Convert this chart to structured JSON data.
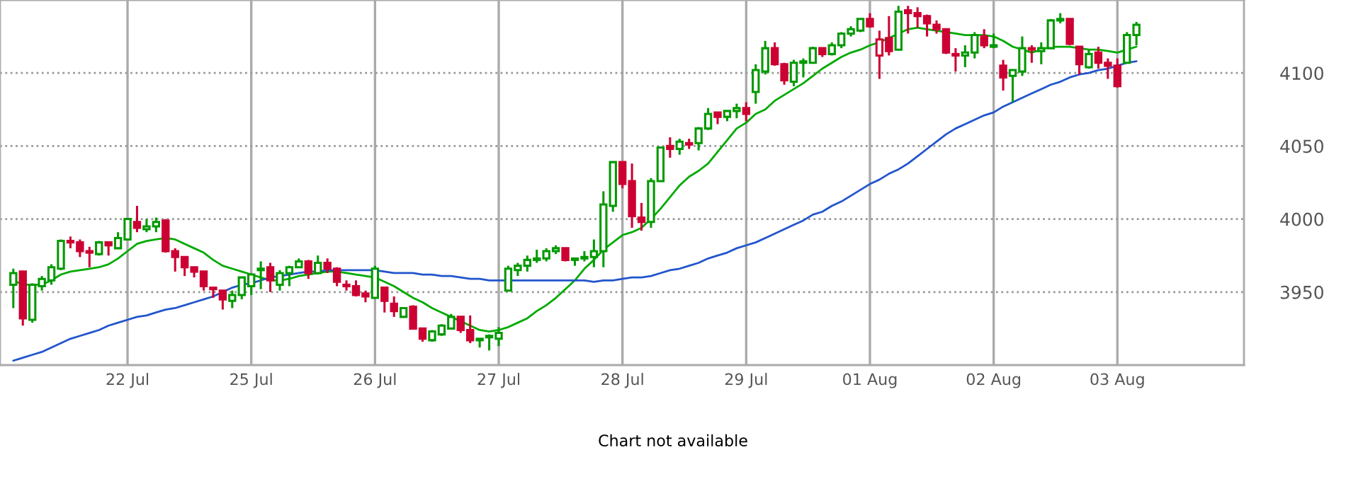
{
  "chart_data": {
    "type": "candlestick",
    "categories": [
      null,
      null,
      null,
      null,
      null,
      null,
      null,
      null,
      null,
      null,
      null,
      null,
      "22 Jul",
      null,
      null,
      null,
      null,
      null,
      null,
      null,
      null,
      null,
      null,
      null,
      null,
      "25 Jul",
      null,
      null,
      null,
      null,
      null,
      null,
      null,
      null,
      null,
      null,
      null,
      null,
      "26 Jul",
      null,
      null,
      null,
      null,
      null,
      null,
      null,
      null,
      null,
      null,
      null,
      null,
      "27 Jul",
      null,
      null,
      null,
      null,
      null,
      null,
      null,
      null,
      null,
      null,
      null,
      null,
      "28 Jul",
      null,
      null,
      null,
      null,
      null,
      null,
      null,
      null,
      null,
      null,
      null,
      null,
      "29 Jul",
      null,
      null,
      null,
      null,
      null,
      null,
      null,
      null,
      null,
      null,
      null,
      null,
      "01 Aug",
      null,
      null,
      null,
      null,
      null,
      null,
      null,
      null,
      null,
      null,
      null,
      null,
      "02 Aug",
      null,
      null,
      null,
      null,
      null,
      null,
      null,
      null,
      null,
      null,
      null,
      null,
      "03 Aug",
      null,
      null
    ],
    "ohlc": [
      [
        3955,
        3966,
        3939,
        3963
      ],
      [
        3964,
        3964,
        3927,
        3932
      ],
      [
        3931,
        3956,
        3929,
        3955
      ],
      [
        3954,
        3961,
        3951,
        3959
      ],
      [
        3958,
        3969,
        3955,
        3967
      ],
      [
        3966,
        3986,
        3965,
        3985
      ],
      [
        3985,
        3988,
        3980,
        3984
      ],
      [
        3984,
        3986,
        3974,
        3978
      ],
      [
        3978,
        3981,
        3967,
        3977
      ],
      [
        3976,
        3985,
        3975,
        3984
      ],
      [
        3984,
        3984,
        3975,
        3982
      ],
      [
        3980,
        3991,
        3980,
        3987
      ],
      [
        3986,
        4000,
        3986,
        4000
      ],
      [
        3998,
        4009,
        3991,
        3994
      ],
      [
        3993,
        4000,
        3991,
        3995
      ],
      [
        3995,
        4001,
        3991,
        3998
      ],
      [
        3999,
        4000,
        3977,
        3978
      ],
      [
        3978,
        3980,
        3964,
        3974
      ],
      [
        3974,
        3974,
        3961,
        3967
      ],
      [
        3967,
        3967,
        3960,
        3964
      ],
      [
        3964,
        3964,
        3951,
        3954
      ],
      [
        3953,
        3953,
        3946,
        3952
      ],
      [
        3951,
        3951,
        3938,
        3945
      ],
      [
        3944,
        3951,
        3939,
        3948
      ],
      [
        3948,
        3960,
        3945,
        3960
      ],
      [
        3954,
        3963,
        3948,
        3962
      ],
      [
        3965,
        3971,
        3952,
        3966
      ],
      [
        3967,
        3970,
        3950,
        3958
      ],
      [
        3955,
        3965,
        3951,
        3963
      ],
      [
        3963,
        3968,
        3954,
        3967
      ],
      [
        3967,
        3973,
        3967,
        3971
      ],
      [
        3971,
        3972,
        3959,
        3963
      ],
      [
        3963,
        3975,
        3962,
        3970
      ],
      [
        3970,
        3973,
        3963,
        3966
      ],
      [
        3966,
        3967,
        3954,
        3957
      ],
      [
        3955,
        3958,
        3951,
        3954
      ],
      [
        3954,
        3958,
        3947,
        3948
      ],
      [
        3949,
        3951,
        3943,
        3947
      ],
      [
        3946,
        3968,
        3946,
        3966
      ],
      [
        3953,
        3953,
        3936,
        3944
      ],
      [
        3942,
        3947,
        3933,
        3937
      ],
      [
        3933,
        3939,
        3933,
        3939
      ],
      [
        3940,
        3941,
        3925,
        3925
      ],
      [
        3925,
        3925,
        3916,
        3918
      ],
      [
        3917,
        3924,
        3916,
        3923
      ],
      [
        3921,
        3928,
        3920,
        3927
      ],
      [
        3925,
        3935,
        3925,
        3933
      ],
      [
        3933,
        3933,
        3922,
        3924
      ],
      [
        3924,
        3934,
        3915,
        3917
      ],
      [
        3917,
        3918,
        3912,
        3918
      ],
      [
        3919,
        3921,
        3910,
        3920
      ],
      [
        3918,
        3926,
        3913,
        3922
      ],
      [
        3951,
        3968,
        3951,
        3966
      ],
      [
        3965,
        3970,
        3961,
        3968
      ],
      [
        3968,
        3975,
        3964,
        3972
      ],
      [
        3972,
        3979,
        3970,
        3973
      ],
      [
        3973,
        3980,
        3971,
        3978
      ],
      [
        3978,
        3982,
        3976,
        3980
      ],
      [
        3980,
        3980,
        3971,
        3972
      ],
      [
        3972,
        3973,
        3968,
        3973
      ],
      [
        3973,
        3978,
        3971,
        3974
      ],
      [
        3974,
        3986,
        3967,
        3978
      ],
      [
        3978,
        4019,
        3967,
        4010
      ],
      [
        4009,
        4039,
        4005,
        4039
      ],
      [
        4039,
        4039,
        4021,
        4024
      ],
      [
        4026,
        4038,
        3994,
        4002
      ],
      [
        4001,
        4011,
        3992,
        3998
      ],
      [
        3998,
        4028,
        3994,
        4026
      ],
      [
        4026,
        4049,
        4026,
        4049
      ],
      [
        4050,
        4056,
        4042,
        4048
      ],
      [
        4048,
        4055,
        4044,
        4053
      ],
      [
        4052,
        4055,
        4048,
        4051
      ],
      [
        4052,
        4063,
        4047,
        4062
      ],
      [
        4062,
        4076,
        4061,
        4072
      ],
      [
        4073,
        4073,
        4065,
        4070
      ],
      [
        4070,
        4074,
        4067,
        4074
      ],
      [
        4074,
        4079,
        4069,
        4076
      ],
      [
        4076,
        4080,
        4067,
        4072
      ],
      [
        4087,
        4106,
        4079,
        4102
      ],
      [
        4101,
        4122,
        4099,
        4117
      ],
      [
        4117,
        4121,
        4105,
        4106
      ],
      [
        4106,
        4107,
        4092,
        4095
      ],
      [
        4094,
        4109,
        4091,
        4107
      ],
      [
        4107,
        4110,
        4097,
        4108
      ],
      [
        4107,
        4118,
        4107,
        4117
      ],
      [
        4117,
        4117,
        4111,
        4113
      ],
      [
        4113,
        4121,
        4112,
        4119
      ],
      [
        4119,
        4128,
        4117,
        4127
      ],
      [
        4127,
        4132,
        4125,
        4130
      ],
      [
        4129,
        4137,
        4128,
        4137
      ],
      [
        4137,
        4141,
        4131,
        4132
      ],
      [
        4112,
        4129,
        4096,
        4123
      ],
      [
        4124,
        4139,
        4112,
        4115
      ],
      [
        4116,
        4146,
        4116,
        4142
      ],
      [
        4143,
        4146,
        4127,
        4141
      ],
      [
        4141,
        4145,
        4131,
        4139
      ],
      [
        4139,
        4140,
        4125,
        4134
      ],
      [
        4133,
        4136,
        4127,
        4130
      ],
      [
        4130,
        4130,
        4113,
        4114
      ],
      [
        4113,
        4117,
        4101,
        4112
      ],
      [
        4112,
        4119,
        4104,
        4114
      ],
      [
        4114,
        4128,
        4110,
        4126
      ],
      [
        4125,
        4130,
        4117,
        4119
      ],
      [
        4118,
        4127,
        4117,
        4119
      ],
      [
        4105,
        4109,
        4088,
        4097
      ],
      [
        4098,
        4102,
        4080,
        4102
      ],
      [
        4101,
        4125,
        4098,
        4117
      ],
      [
        4117,
        4119,
        4107,
        4116
      ],
      [
        4115,
        4121,
        4106,
        4117
      ],
      [
        4117,
        4137,
        4117,
        4136
      ],
      [
        4136,
        4141,
        4134,
        4137
      ],
      [
        4137,
        4137,
        4119,
        4120
      ],
      [
        4118,
        4118,
        4099,
        4106
      ],
      [
        4104,
        4116,
        4103,
        4113
      ],
      [
        4114,
        4118,
        4103,
        4107
      ],
      [
        4107,
        4110,
        4096,
        4105
      ],
      [
        4105,
        4110,
        4090,
        4091
      ],
      [
        4107,
        4128,
        4107,
        4126
      ],
      [
        4126,
        4135,
        4119,
        4133
      ]
    ],
    "colors": [
      "#009900",
      "#cc0033",
      "#009900",
      "#009900",
      "#009900",
      "#009900",
      "#cc0033",
      "#cc0033",
      "#cc0033",
      "#009900",
      "#cc0033",
      "#009900",
      "#009900",
      "#cc0033",
      "#009900",
      "#009900",
      "#cc0033",
      "#cc0033",
      "#cc0033",
      "#cc0033",
      "#cc0033",
      "#cc0033",
      "#cc0033",
      "#009900",
      "#009900",
      "#009900",
      "#009900",
      "#cc0033",
      "#009900",
      "#009900",
      "#009900",
      "#cc0033",
      "#009900",
      "#cc0033",
      "#cc0033",
      "#cc0033",
      "#cc0033",
      "#cc0033",
      "#009900",
      "#cc0033",
      "#cc0033",
      "#009900",
      "#cc0033",
      "#cc0033",
      "#009900",
      "#009900",
      "#009900",
      "#cc0033",
      "#cc0033",
      "#009900",
      "#009900",
      "#009900",
      "#009900",
      "#009900",
      "#009900",
      "#009900",
      "#009900",
      "#009900",
      "#cc0033",
      "#009900",
      "#009900",
      "#009900",
      "#009900",
      "#009900",
      "#cc0033",
      "#cc0033",
      "#cc0033",
      "#009900",
      "#009900",
      "#cc0033",
      "#009900",
      "#cc0033",
      "#009900",
      "#009900",
      "#cc0033",
      "#009900",
      "#009900",
      "#cc0033",
      "#009900",
      "#009900",
      "#cc0033",
      "#cc0033",
      "#009900",
      "#009900",
      "#009900",
      "#cc0033",
      "#009900",
      "#009900",
      "#009900",
      "#009900",
      "#cc0033",
      "#cc0033",
      "#cc0033",
      "#009900",
      "#cc0033",
      "#cc0033",
      "#cc0033",
      "#cc0033",
      "#cc0033",
      "#cc0033",
      "#009900",
      "#009900",
      "#cc0033",
      "#009900",
      "#cc0033",
      "#009900",
      "#009900",
      "#cc0033",
      "#009900",
      "#009900",
      "#009900",
      "#cc0033",
      "#cc0033",
      "#009900",
      "#cc0033",
      "#cc0033",
      "#cc0033",
      "#009900",
      "#009900"
    ],
    "series": [
      {
        "type": "line",
        "color": "#00aa00",
        "values": [
          3958,
          3955,
          3955,
          3955,
          3958,
          3962,
          3964,
          3965,
          3966,
          3967,
          3969,
          3973,
          3978,
          3983,
          3985,
          3986,
          3987,
          3986,
          3983,
          3980,
          3977,
          3972,
          3968,
          3966,
          3964,
          3962,
          3960,
          3958,
          3958,
          3959,
          3961,
          3962,
          3963,
          3964,
          3964,
          3963,
          3962,
          3961,
          3960,
          3957,
          3954,
          3950,
          3946,
          3943,
          3939,
          3936,
          3933,
          3930,
          3927,
          3924,
          3923,
          3924,
          3926,
          3929,
          3932,
          3937,
          3941,
          3946,
          3952,
          3958,
          3966,
          3972,
          3979,
          3984,
          3989,
          3991,
          3994,
          4000,
          4007,
          4015,
          4023,
          4029,
          4033,
          4038,
          4046,
          4054,
          4062,
          4066,
          4072,
          4075,
          4081,
          4085,
          4089,
          4093,
          4098,
          4103,
          4107,
          4111,
          4114,
          4116,
          4119,
          4121,
          4124,
          4127,
          4130,
          4131,
          4130,
          4129,
          4128,
          4127,
          4126,
          4126,
          4126,
          4125,
          4122,
          4118,
          4116,
          4114,
          4116,
          4118,
          4118,
          4118,
          4117,
          4116,
          4116,
          4115,
          4114,
          4116,
          4118
        ]
      },
      {
        "type": "line",
        "color": "#2255cc",
        "values": [
          3903,
          3905,
          3907,
          3909,
          3912,
          3915,
          3918,
          3920,
          3922,
          3924,
          3927,
          3929,
          3931,
          3933,
          3934,
          3936,
          3938,
          3939,
          3941,
          3943,
          3945,
          3947,
          3950,
          3953,
          3955,
          3956,
          3958,
          3960,
          3961,
          3962,
          3963,
          3964,
          3964,
          3965,
          3965,
          3965,
          3965,
          3965,
          3965,
          3964,
          3963,
          3963,
          3963,
          3962,
          3962,
          3961,
          3961,
          3960,
          3959,
          3959,
          3958,
          3958,
          3958,
          3958,
          3958,
          3958,
          3958,
          3958,
          3958,
          3958,
          3958,
          3957,
          3958,
          3958,
          3959,
          3960,
          3960,
          3961,
          3963,
          3965,
          3966,
          3968,
          3970,
          3973,
          3975,
          3977,
          3980,
          3982,
          3984,
          3987,
          3990,
          3993,
          3996,
          3999,
          4003,
          4005,
          4009,
          4012,
          4016,
          4020,
          4024,
          4027,
          4031,
          4034,
          4038,
          4043,
          4048,
          4053,
          4058,
          4062,
          4065,
          4068,
          4071,
          4073,
          4077,
          4080,
          4083,
          4086,
          4089,
          4092,
          4094,
          4097,
          4099,
          4100,
          4102,
          4103,
          4105,
          4107,
          4108
        ]
      }
    ],
    "ylim": [
      3900,
      4150
    ],
    "yticks": [
      3950,
      4000,
      4050,
      4100
    ],
    "grid": true,
    "annotations": [
      "Chart not available"
    ]
  }
}
